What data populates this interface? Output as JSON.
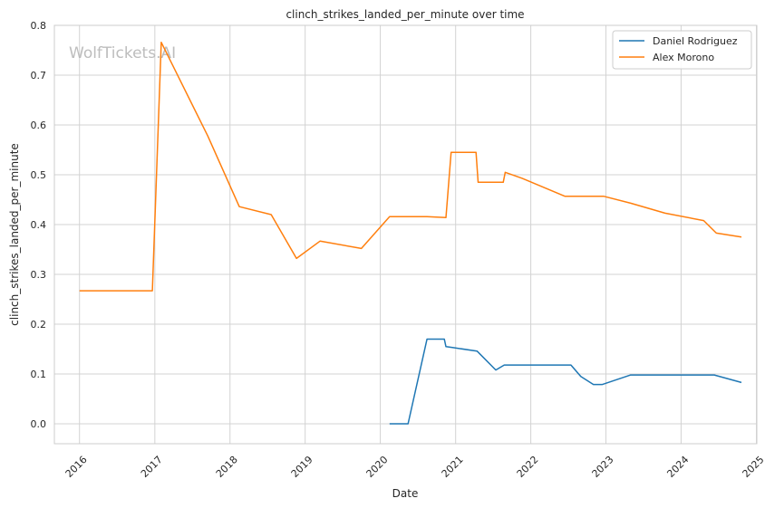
{
  "chart_data": {
    "type": "line",
    "title": "clinch_strikes_landed_per_minute over time",
    "xlabel": "Date",
    "ylabel": "clinch_strikes_landed_per_minute",
    "watermark": "WolfTickets.AI",
    "xlim": [
      "2015-09-01",
      "2025-01-03"
    ],
    "ylim": [
      -0.04,
      0.8
    ],
    "yticks": [
      0.0,
      0.1,
      0.2,
      0.3,
      0.4,
      0.5,
      0.6,
      0.7,
      0.8
    ],
    "ytick_labels": [
      "0.0",
      "0.1",
      "0.2",
      "0.3",
      "0.4",
      "0.5",
      "0.6",
      "0.7",
      "0.8"
    ],
    "xticks": [
      "2016-01-01",
      "2017-01-01",
      "2018-01-01",
      "2019-01-01",
      "2020-01-01",
      "2021-01-01",
      "2022-01-01",
      "2023-01-01",
      "2024-01-01",
      "2025-01-01"
    ],
    "xtick_labels": [
      "2016",
      "2017",
      "2018",
      "2019",
      "2020",
      "2021",
      "2022",
      "2023",
      "2024",
      "2025"
    ],
    "grid": true,
    "legend_position": "top-right",
    "series": [
      {
        "name": "Daniel Rodriguez",
        "color": "#1f77b4",
        "points": [
          [
            "2020-02-15",
            0.0
          ],
          [
            "2020-05-15",
            0.0
          ],
          [
            "2020-08-15",
            0.17
          ],
          [
            "2020-11-07",
            0.17
          ],
          [
            "2020-11-15",
            0.155
          ],
          [
            "2020-12-20",
            0.153
          ],
          [
            "2021-04-15",
            0.146
          ],
          [
            "2021-07-15",
            0.108
          ],
          [
            "2021-08-25",
            0.118
          ],
          [
            "2022-07-15",
            0.118
          ],
          [
            "2022-09-01",
            0.095
          ],
          [
            "2022-11-01",
            0.079
          ],
          [
            "2022-12-15",
            0.079
          ],
          [
            "2023-05-01",
            0.098
          ],
          [
            "2024-06-10",
            0.098
          ],
          [
            "2024-10-20",
            0.083
          ]
        ]
      },
      {
        "name": "Alex Morono",
        "color": "#ff7f0e",
        "points": [
          [
            "2016-01-01",
            0.267
          ],
          [
            "2016-12-20",
            0.267
          ],
          [
            "2017-02-01",
            0.766
          ],
          [
            "2017-09-15",
            0.578
          ],
          [
            "2018-02-15",
            0.436
          ],
          [
            "2018-07-20",
            0.42
          ],
          [
            "2018-11-20",
            0.332
          ],
          [
            "2019-03-15",
            0.367
          ],
          [
            "2019-10-01",
            0.352
          ],
          [
            "2020-02-15",
            0.416
          ],
          [
            "2020-08-15",
            0.416
          ],
          [
            "2020-11-15",
            0.414
          ],
          [
            "2020-12-10",
            0.545
          ],
          [
            "2021-04-10",
            0.545
          ],
          [
            "2021-04-20",
            0.485
          ],
          [
            "2021-08-20",
            0.485
          ],
          [
            "2021-08-30",
            0.505
          ],
          [
            "2021-11-20",
            0.493
          ],
          [
            "2022-06-15",
            0.457
          ],
          [
            "2022-12-20",
            0.457
          ],
          [
            "2023-05-01",
            0.443
          ],
          [
            "2023-10-15",
            0.423
          ],
          [
            "2024-04-20",
            0.408
          ],
          [
            "2024-06-20",
            0.383
          ],
          [
            "2024-10-20",
            0.375
          ]
        ]
      }
    ]
  }
}
